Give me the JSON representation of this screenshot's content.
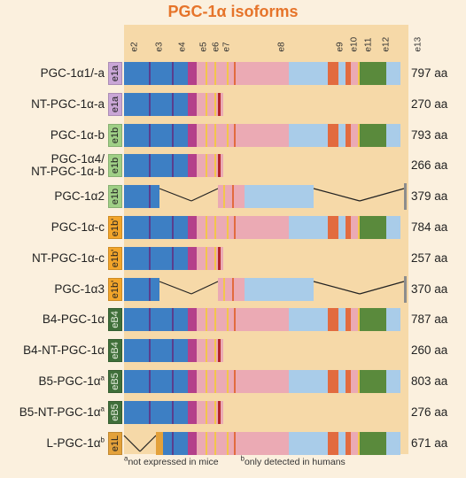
{
  "title": "PGC-1α isoforms",
  "exon_labels": [
    "e2",
    "e3",
    "e4",
    "e5",
    "e6",
    "e7",
    "e8",
    "e9",
    "e10",
    "e11",
    "e12",
    "e13"
  ],
  "colors": {
    "e1a": "#c9a6d6",
    "e1b": "#9fcf86",
    "e1b_prime": "#f2a52b",
    "eB4": "#3f6f3a",
    "eB5": "#3f6f3a",
    "e1L": "#e3a13a",
    "blue": "#3d7fc4",
    "light_blue": "#a9cce9",
    "pink": "#ebaab4",
    "orange_red": "#e26b3f",
    "green": "#5a8a3c",
    "stop": "#b5242b"
  },
  "isoforms": [
    {
      "name": "PGC-1α1/-a",
      "name_line2": "",
      "sup": "",
      "first_exon": "e1a",
      "first_exon_color": "e1a",
      "length": "797 aa",
      "type": "full"
    },
    {
      "name": "NT-PGC-1α-a",
      "name_line2": "",
      "sup": "",
      "first_exon": "e1a",
      "first_exon_color": "e1a",
      "length": "270 aa",
      "type": "nt"
    },
    {
      "name": "PGC-1α-b",
      "name_line2": "",
      "sup": "",
      "first_exon": "e1b",
      "first_exon_color": "e1b",
      "length": "793 aa",
      "type": "full"
    },
    {
      "name": "PGC-1α4/",
      "name_line2": "NT-PGC-1α-b",
      "sup": "",
      "first_exon": "e1b",
      "first_exon_color": "e1b",
      "length": "266 aa",
      "type": "nt"
    },
    {
      "name": "PGC-1α2",
      "name_line2": "",
      "sup": "",
      "first_exon": "e1b",
      "first_exon_color": "e1b",
      "length": "379 aa",
      "type": "spliced"
    },
    {
      "name": "PGC-1α-c",
      "name_line2": "",
      "sup": "",
      "first_exon": "e1b'",
      "first_exon_color": "e1b_prime",
      "length": "784 aa",
      "type": "full"
    },
    {
      "name": "NT-PGC-1α-c",
      "name_line2": "",
      "sup": "",
      "first_exon": "e1b'",
      "first_exon_color": "e1b_prime",
      "length": "257 aa",
      "type": "nt"
    },
    {
      "name": "PGC-1α3",
      "name_line2": "",
      "sup": "",
      "first_exon": "e1b'",
      "first_exon_color": "e1b_prime",
      "length": "370 aa",
      "type": "spliced"
    },
    {
      "name": "B4-PGC-1α",
      "name_line2": "",
      "sup": "",
      "first_exon": "eB4",
      "first_exon_color": "eB4",
      "length": "787 aa",
      "type": "full"
    },
    {
      "name": "B4-NT-PGC-1α",
      "name_line2": "",
      "sup": "",
      "first_exon": "eB4",
      "first_exon_color": "eB4",
      "length": "260 aa",
      "type": "nt"
    },
    {
      "name": "B5-PGC-1α",
      "name_line2": "",
      "sup": "a",
      "first_exon": "eB5",
      "first_exon_color": "eB5",
      "length": "803 aa",
      "type": "full"
    },
    {
      "name": "B5-NT-PGC-1α",
      "name_line2": "",
      "sup": "a",
      "first_exon": "eB5",
      "first_exon_color": "eB5",
      "length": "276 aa",
      "type": "nt"
    },
    {
      "name": "L-PGC-1α",
      "name_line2": "",
      "sup": "b",
      "first_exon": "e1L",
      "first_exon_color": "e1L",
      "length": "671 aa",
      "type": "liver"
    }
  ],
  "footnotes": {
    "a_marker": "a",
    "a_text": "not expressed in mice",
    "b_marker": "b",
    "b_text": "only detected in humans"
  }
}
